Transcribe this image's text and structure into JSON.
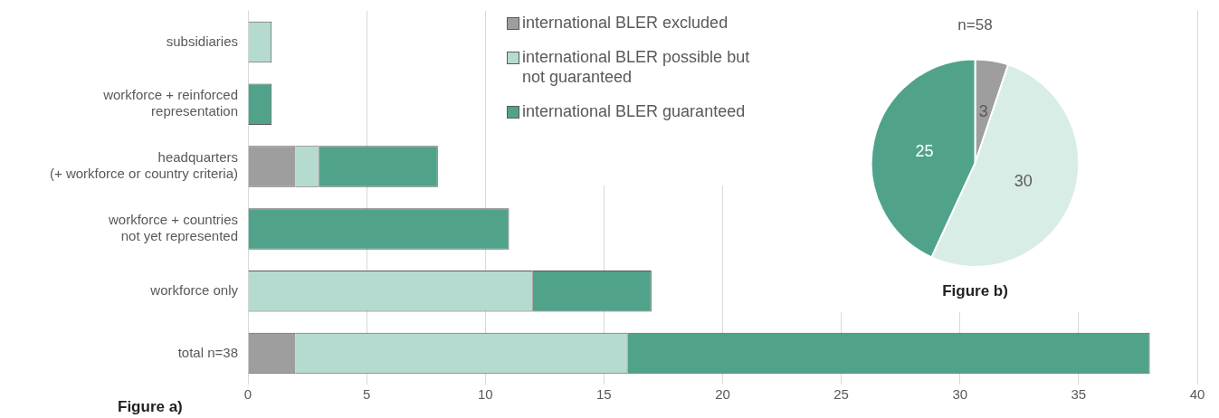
{
  "chart_data": [
    {
      "type": "bar",
      "orientation": "horizontal",
      "stacked": true,
      "categories": [
        "subsidiaries",
        "workforce + reinforced\nrepresentation",
        "headquarters\n(+ workforce or country criteria)",
        "workforce + countries\nnot yet represented",
        "workforce only",
        "total n=38"
      ],
      "series": [
        {
          "name": "international BLER excluded",
          "color": "#9e9e9e",
          "values": [
            0,
            0,
            2,
            0,
            0,
            2
          ]
        },
        {
          "name": "international BLER possible but not guaranteed",
          "color": "#b5dbd0",
          "values": [
            1,
            0,
            1,
            0,
            12,
            14
          ]
        },
        {
          "name": "international BLER guaranteed",
          "color": "#50a38a",
          "values": [
            0,
            1,
            5,
            11,
            5,
            22
          ]
        }
      ],
      "xlim": [
        0,
        40
      ],
      "xticks": [
        0,
        5,
        10,
        15,
        20,
        25,
        30,
        35,
        40
      ],
      "grid": "x",
      "legend": "top",
      "annotations": [
        "Figure a)"
      ]
    },
    {
      "type": "pie",
      "title": "n=58",
      "categories": [
        null,
        null,
        null
      ],
      "values": [
        3,
        30,
        25
      ],
      "colors": [
        "#9e9e9e",
        "#d9ede7",
        "#50a38a"
      ],
      "data_labels": true,
      "annotations": [
        "Figure b)"
      ]
    }
  ]
}
